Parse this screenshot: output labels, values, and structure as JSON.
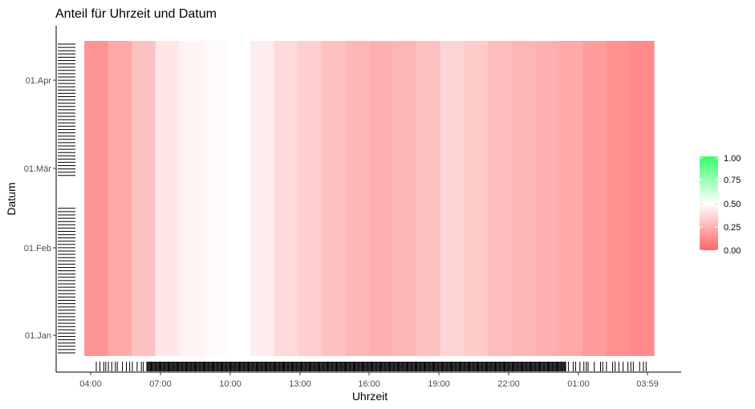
{
  "chart_data": {
    "type": "heatmap",
    "title": "Anteil für Uhrzeit und Datum",
    "xlabel": "Uhrzeit",
    "ylabel": "Datum",
    "x_tick_labels": [
      "04:00",
      "07:00",
      "10:00",
      "13:00",
      "16:00",
      "19:00",
      "22:00",
      "01:00",
      "03:59"
    ],
    "y_tick_labels": [
      "01.Jan",
      "01.Feb",
      "01.Mär",
      "01.Apr"
    ],
    "grid": false,
    "legend_position": "right",
    "colors": {
      "low": "#ff6666",
      "mid": "#ffffff",
      "high": "#33ff66"
    },
    "legend": {
      "min": 0.0,
      "max": 1.0,
      "ticks": [
        "0.00",
        "0.25",
        "0.50",
        "0.75",
        "1.00"
      ]
    },
    "hour_columns": {
      "hours": [
        "04",
        "05",
        "06",
        "07",
        "08",
        "09",
        "10",
        "11",
        "12",
        "13",
        "14",
        "15",
        "16",
        "17",
        "18",
        "19",
        "20",
        "21",
        "22",
        "23",
        "00",
        "01",
        "02",
        "03"
      ],
      "values": [
        0.15,
        0.22,
        0.3,
        0.42,
        0.46,
        0.48,
        0.5,
        0.44,
        0.38,
        0.34,
        0.3,
        0.26,
        0.24,
        0.26,
        0.3,
        0.36,
        0.33,
        0.28,
        0.26,
        0.24,
        0.22,
        0.18,
        0.14,
        0.12
      ]
    },
    "date_range": [
      "01.Jan",
      "01.Apr"
    ]
  }
}
